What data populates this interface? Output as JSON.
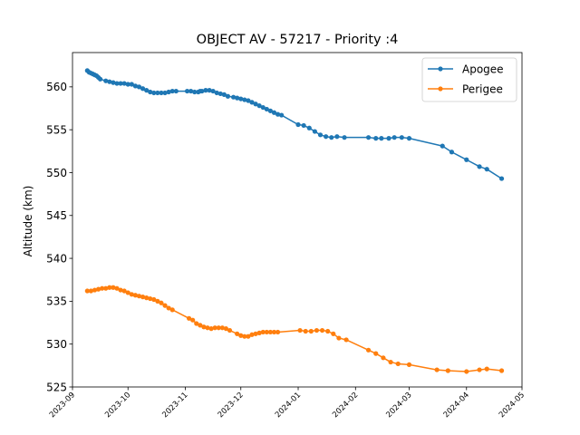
{
  "chart_data": {
    "type": "line",
    "title": "OBJECT AV - 57217 - Priority :4",
    "xlabel": "",
    "ylabel": "Altitude (km)",
    "xlim": [
      "2023-09-01",
      "2024-05-01"
    ],
    "ylim": [
      525,
      564
    ],
    "x_ticks": [
      "2023-09",
      "2023-10",
      "2023-11",
      "2023-12",
      "2024-01",
      "2024-02",
      "2024-03",
      "2024-04",
      "2024-05"
    ],
    "y_ticks": [
      525,
      530,
      535,
      540,
      545,
      550,
      555,
      560
    ],
    "grid": false,
    "legend_position": "top-right",
    "series": [
      {
        "name": "Apogee",
        "color": "#1f77b4",
        "points": [
          [
            "2023-09-09",
            561.9
          ],
          [
            "2023-09-10",
            561.7
          ],
          [
            "2023-09-11",
            561.6
          ],
          [
            "2023-09-12",
            561.5
          ],
          [
            "2023-09-13",
            561.4
          ],
          [
            "2023-09-14",
            561.3
          ],
          [
            "2023-09-15",
            561.1
          ],
          [
            "2023-09-16",
            560.9
          ],
          [
            "2023-09-19",
            560.7
          ],
          [
            "2023-09-21",
            560.6
          ],
          [
            "2023-09-23",
            560.5
          ],
          [
            "2023-09-25",
            560.4
          ],
          [
            "2023-09-27",
            560.4
          ],
          [
            "2023-09-29",
            560.4
          ],
          [
            "2023-10-01",
            560.3
          ],
          [
            "2023-10-03",
            560.3
          ],
          [
            "2023-10-05",
            560.1
          ],
          [
            "2023-10-07",
            560.0
          ],
          [
            "2023-10-09",
            559.8
          ],
          [
            "2023-10-11",
            559.6
          ],
          [
            "2023-10-13",
            559.4
          ],
          [
            "2023-10-15",
            559.3
          ],
          [
            "2023-10-17",
            559.3
          ],
          [
            "2023-10-19",
            559.3
          ],
          [
            "2023-10-21",
            559.3
          ],
          [
            "2023-10-23",
            559.4
          ],
          [
            "2023-10-25",
            559.5
          ],
          [
            "2023-10-27",
            559.5
          ],
          [
            "2023-11-02",
            559.5
          ],
          [
            "2023-11-04",
            559.5
          ],
          [
            "2023-11-06",
            559.4
          ],
          [
            "2023-11-08",
            559.4
          ],
          [
            "2023-11-09",
            559.5
          ],
          [
            "2023-11-10",
            559.5
          ],
          [
            "2023-11-12",
            559.6
          ],
          [
            "2023-11-14",
            559.6
          ],
          [
            "2023-11-16",
            559.5
          ],
          [
            "2023-11-18",
            559.3
          ],
          [
            "2023-11-20",
            559.2
          ],
          [
            "2023-11-22",
            559.1
          ],
          [
            "2023-11-24",
            558.9
          ],
          [
            "2023-11-27",
            558.8
          ],
          [
            "2023-11-29",
            558.7
          ],
          [
            "2023-12-01",
            558.6
          ],
          [
            "2023-12-03",
            558.5
          ],
          [
            "2023-12-05",
            558.4
          ],
          [
            "2023-12-07",
            558.2
          ],
          [
            "2023-12-09",
            558.0
          ],
          [
            "2023-12-11",
            557.8
          ],
          [
            "2023-12-13",
            557.6
          ],
          [
            "2023-12-15",
            557.4
          ],
          [
            "2023-12-17",
            557.2
          ],
          [
            "2023-12-19",
            557.0
          ],
          [
            "2023-12-21",
            556.8
          ],
          [
            "2023-12-23",
            556.7
          ],
          [
            "2024-01-01",
            555.6
          ],
          [
            "2024-01-04",
            555.5
          ],
          [
            "2024-01-07",
            555.2
          ],
          [
            "2024-01-10",
            554.8
          ],
          [
            "2024-01-13",
            554.4
          ],
          [
            "2024-01-16",
            554.2
          ],
          [
            "2024-01-19",
            554.1
          ],
          [
            "2024-01-22",
            554.2
          ],
          [
            "2024-01-26",
            554.1
          ],
          [
            "2024-02-08",
            554.1
          ],
          [
            "2024-02-12",
            554.0
          ],
          [
            "2024-02-15",
            554.0
          ],
          [
            "2024-02-19",
            554.0
          ],
          [
            "2024-02-22",
            554.1
          ],
          [
            "2024-02-26",
            554.1
          ],
          [
            "2024-03-01",
            554.0
          ],
          [
            "2024-03-19",
            553.1
          ],
          [
            "2024-03-24",
            552.4
          ],
          [
            "2024-04-01",
            551.5
          ],
          [
            "2024-04-08",
            550.7
          ],
          [
            "2024-04-12",
            550.4
          ],
          [
            "2024-04-20",
            549.3
          ]
        ]
      },
      {
        "name": "Perigee",
        "color": "#ff7f0e",
        "points": [
          [
            "2023-09-09",
            536.2
          ],
          [
            "2023-09-11",
            536.2
          ],
          [
            "2023-09-13",
            536.3
          ],
          [
            "2023-09-15",
            536.4
          ],
          [
            "2023-09-17",
            536.5
          ],
          [
            "2023-09-19",
            536.5
          ],
          [
            "2023-09-21",
            536.6
          ],
          [
            "2023-09-23",
            536.6
          ],
          [
            "2023-09-25",
            536.5
          ],
          [
            "2023-09-27",
            536.3
          ],
          [
            "2023-09-29",
            536.2
          ],
          [
            "2023-10-01",
            536.0
          ],
          [
            "2023-10-03",
            535.8
          ],
          [
            "2023-10-05",
            535.7
          ],
          [
            "2023-10-07",
            535.6
          ],
          [
            "2023-10-09",
            535.5
          ],
          [
            "2023-10-11",
            535.4
          ],
          [
            "2023-10-13",
            535.3
          ],
          [
            "2023-10-15",
            535.2
          ],
          [
            "2023-10-17",
            535.0
          ],
          [
            "2023-10-19",
            534.8
          ],
          [
            "2023-10-21",
            534.5
          ],
          [
            "2023-10-23",
            534.2
          ],
          [
            "2023-10-25",
            534.0
          ],
          [
            "2023-11-03",
            533.0
          ],
          [
            "2023-11-05",
            532.8
          ],
          [
            "2023-11-07",
            532.4
          ],
          [
            "2023-11-09",
            532.2
          ],
          [
            "2023-11-11",
            532.0
          ],
          [
            "2023-11-13",
            531.9
          ],
          [
            "2023-11-15",
            531.8
          ],
          [
            "2023-11-17",
            531.9
          ],
          [
            "2023-11-19",
            531.9
          ],
          [
            "2023-11-21",
            531.9
          ],
          [
            "2023-11-23",
            531.8
          ],
          [
            "2023-11-25",
            531.6
          ],
          [
            "2023-11-29",
            531.2
          ],
          [
            "2023-12-01",
            531.0
          ],
          [
            "2023-12-03",
            530.9
          ],
          [
            "2023-12-05",
            530.9
          ],
          [
            "2023-12-07",
            531.1
          ],
          [
            "2023-12-09",
            531.2
          ],
          [
            "2023-12-11",
            531.3
          ],
          [
            "2023-12-13",
            531.4
          ],
          [
            "2023-12-15",
            531.4
          ],
          [
            "2023-12-17",
            531.4
          ],
          [
            "2023-12-19",
            531.4
          ],
          [
            "2023-12-21",
            531.4
          ],
          [
            "2024-01-02",
            531.6
          ],
          [
            "2024-01-05",
            531.5
          ],
          [
            "2024-01-08",
            531.5
          ],
          [
            "2024-01-11",
            531.6
          ],
          [
            "2024-01-14",
            531.6
          ],
          [
            "2024-01-17",
            531.5
          ],
          [
            "2024-01-20",
            531.2
          ],
          [
            "2024-01-23",
            530.7
          ],
          [
            "2024-01-27",
            530.5
          ],
          [
            "2024-02-08",
            529.3
          ],
          [
            "2024-02-12",
            528.9
          ],
          [
            "2024-02-16",
            528.4
          ],
          [
            "2024-02-20",
            527.9
          ],
          [
            "2024-02-24",
            527.7
          ],
          [
            "2024-03-01",
            527.6
          ],
          [
            "2024-03-16",
            527.0
          ],
          [
            "2024-03-22",
            526.9
          ],
          [
            "2024-04-01",
            526.8
          ],
          [
            "2024-04-08",
            527.0
          ],
          [
            "2024-04-12",
            527.1
          ],
          [
            "2024-04-20",
            526.9
          ]
        ]
      }
    ]
  }
}
